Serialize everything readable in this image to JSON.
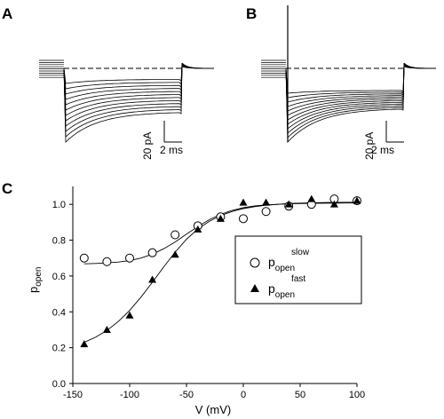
{
  "panels": {
    "a": {
      "letter": "A"
    },
    "b": {
      "letter": "B"
    },
    "c": {
      "letter": "C"
    }
  },
  "scale_bars": {
    "current": "20 pA",
    "time": "2 ms"
  },
  "chart_data": {
    "type": "scatter",
    "title": "",
    "xlabel": "V (mV)",
    "ylabel": {
      "base": "p",
      "sub": "open"
    },
    "xlim": [
      -150,
      100
    ],
    "ylim": [
      0.0,
      1.1
    ],
    "xticks": [
      -150,
      -100,
      -50,
      0,
      50,
      100
    ],
    "yticks": [
      0.0,
      0.2,
      0.4,
      0.6,
      0.8,
      1.0
    ],
    "xtick_labels": [
      "-150",
      "-100",
      "-50",
      "0",
      "50",
      "100"
    ],
    "ytick_labels": [
      "0.0",
      "0.2",
      "0.4",
      "0.6",
      "0.8",
      "1.0"
    ],
    "grid": false,
    "legend_position": "center-right",
    "series": [
      {
        "name": "p_open^slow",
        "legend": {
          "base": "p",
          "sub": "open",
          "sup": "slow"
        },
        "marker": "open-circle",
        "x": [
          -140,
          -120,
          -100,
          -80,
          -60,
          -40,
          -20,
          0,
          20,
          40,
          60,
          80,
          100
        ],
        "y": [
          0.7,
          0.68,
          0.7,
          0.73,
          0.83,
          0.88,
          0.93,
          0.92,
          0.96,
          0.99,
          1.0,
          1.03,
          1.02
        ],
        "fit": {
          "x": [
            -140,
            -130,
            -120,
            -110,
            -100,
            -90,
            -80,
            -70,
            -60,
            -50,
            -40,
            -30,
            -20,
            -10,
            0,
            10,
            20,
            40,
            60,
            80,
            100
          ],
          "y": [
            0.668,
            0.67,
            0.673,
            0.678,
            0.686,
            0.7,
            0.722,
            0.752,
            0.79,
            0.834,
            0.876,
            0.914,
            0.944,
            0.966,
            0.981,
            0.991,
            0.997,
            1.003,
            1.006,
            1.007,
            1.008
          ]
        }
      },
      {
        "name": "p_open^fast",
        "legend": {
          "base": "p",
          "sub": "open",
          "sup": "fast"
        },
        "marker": "filled-triangle",
        "x": [
          -140,
          -120,
          -100,
          -80,
          -60,
          -40,
          -20,
          0,
          20,
          40,
          60,
          80,
          100
        ],
        "y": [
          0.22,
          0.3,
          0.38,
          0.58,
          0.72,
          0.86,
          0.92,
          1.01,
          1.01,
          1.0,
          1.03,
          1.0,
          1.02
        ],
        "fit": {
          "x": [
            -140,
            -130,
            -120,
            -110,
            -100,
            -90,
            -80,
            -70,
            -60,
            -50,
            -40,
            -30,
            -20,
            -10,
            0,
            10,
            20,
            40,
            60,
            80,
            100
          ],
          "y": [
            0.23,
            0.258,
            0.296,
            0.346,
            0.408,
            0.482,
            0.565,
            0.651,
            0.733,
            0.805,
            0.862,
            0.905,
            0.937,
            0.96,
            0.976,
            0.987,
            0.995,
            1.005,
            1.009,
            1.011,
            1.012
          ]
        }
      }
    ]
  }
}
